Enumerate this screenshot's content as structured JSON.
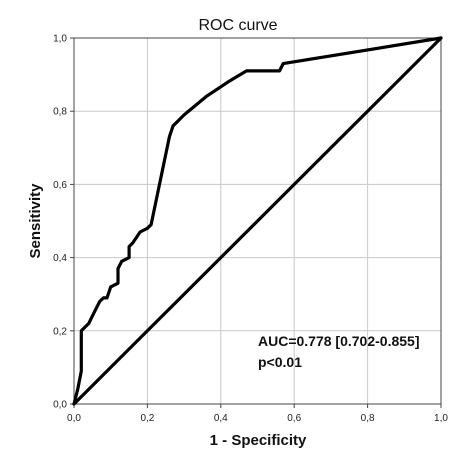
{
  "chart_data": {
    "type": "line",
    "title": "ROC curve",
    "xlabel": "1 - Specificity",
    "ylabel": "Sensitivity",
    "xlim": [
      0,
      1
    ],
    "ylim": [
      0,
      1
    ],
    "grid": true,
    "x_ticks": [
      "0,0",
      "0,2",
      "0,4",
      "0,6",
      "0,8",
      "1,0"
    ],
    "y_ticks": [
      "0,0",
      "0,2",
      "0,4",
      "0,6",
      "0,8",
      "1,0"
    ],
    "annotations": [
      "AUC=0.778 [0.702-0.855]",
      "p<0.01"
    ],
    "series": [
      {
        "x": [
          0,
          0.01,
          0.02,
          0.02,
          0.03,
          0.04,
          0.05,
          0.06,
          0.07,
          0.08,
          0.09,
          0.1,
          0.12,
          0.12,
          0.13,
          0.15,
          0.15,
          0.16,
          0.18,
          0.2,
          0.21,
          0.26,
          0.27,
          0.28,
          0.3,
          0.36,
          0.42,
          0.47,
          0.56,
          0.57,
          1.0
        ],
        "y": [
          0,
          0.04,
          0.09,
          0.2,
          0.21,
          0.22,
          0.24,
          0.26,
          0.28,
          0.29,
          0.29,
          0.32,
          0.33,
          0.37,
          0.39,
          0.4,
          0.43,
          0.44,
          0.47,
          0.48,
          0.49,
          0.73,
          0.76,
          0.77,
          0.79,
          0.84,
          0.88,
          0.91,
          0.91,
          0.93,
          1.0
        ],
        "color": "#000000"
      },
      {
        "x": [
          0,
          1
        ],
        "y": [
          0,
          1
        ],
        "color": "#000000"
      }
    ]
  }
}
